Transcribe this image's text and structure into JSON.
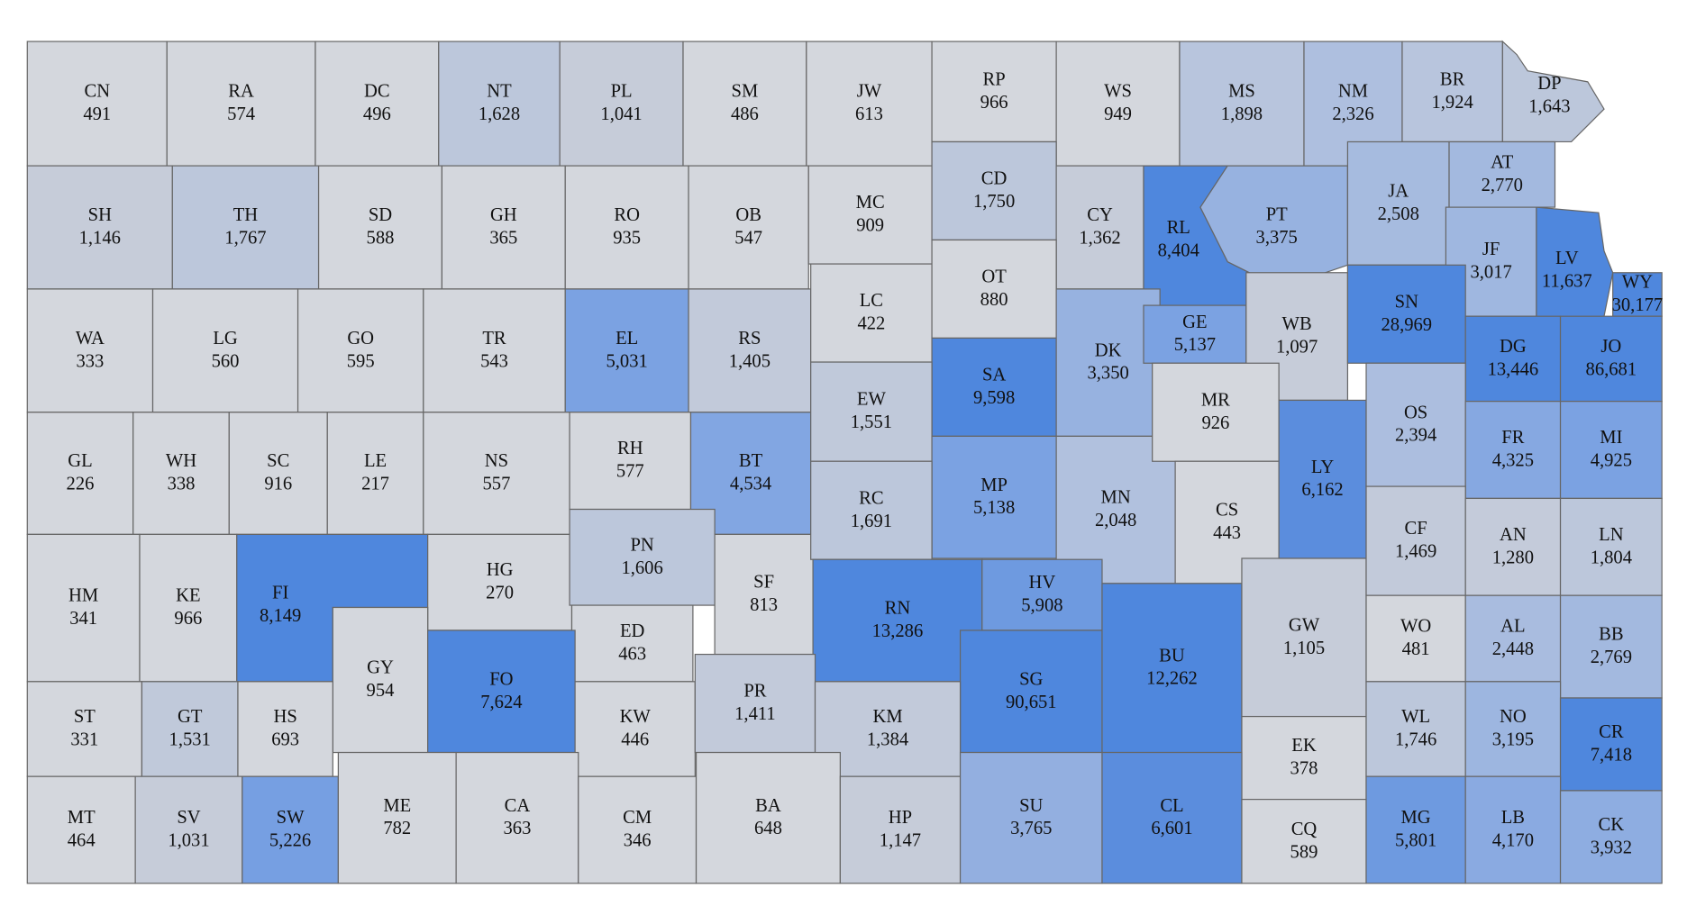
{
  "chart_data": {
    "type": "map",
    "categories": [
      "CN",
      "RA",
      "DC",
      "NT",
      "PL",
      "SM",
      "JW",
      "RP",
      "WS",
      "MS",
      "NM",
      "BR",
      "DP",
      "SH",
      "TH",
      "SD",
      "GH",
      "RO",
      "OB",
      "MC",
      "CD",
      "CY",
      "RL",
      "PT",
      "JA",
      "AT",
      "JF",
      "LV",
      "WY",
      "WA",
      "LG",
      "GO",
      "TR",
      "EL",
      "RS",
      "LC",
      "OT",
      "SA",
      "DK",
      "GE",
      "WB",
      "SN",
      "DG",
      "JO",
      "GL",
      "WH",
      "SC",
      "LE",
      "NS",
      "RH",
      "BT",
      "EW",
      "MP",
      "MN",
      "MR",
      "CS",
      "LY",
      "OS",
      "FR",
      "MI",
      "HM",
      "KE",
      "FI",
      "HG",
      "PN",
      "SF",
      "RC",
      "GY",
      "ED",
      "RN",
      "HV",
      "SG",
      "BU",
      "GW",
      "CF",
      "AN",
      "LN",
      "WO",
      "AL",
      "BB",
      "FO",
      "ST",
      "GT",
      "HS",
      "KW",
      "PR",
      "KM",
      "EK",
      "WL",
      "NO",
      "CR",
      "MT",
      "SV",
      "SW",
      "ME",
      "CA",
      "CM",
      "BA",
      "HP",
      "SU",
      "CL",
      "CQ",
      "MG",
      "LB",
      "CK"
    ],
    "values": [
      491,
      574,
      496,
      1628,
      1041,
      486,
      613,
      966,
      949,
      1898,
      2326,
      1924,
      1643,
      1146,
      1767,
      588,
      365,
      935,
      547,
      909,
      1750,
      1362,
      8404,
      3375,
      2508,
      2770,
      3017,
      11637,
      30177,
      333,
      560,
      595,
      543,
      5031,
      1405,
      422,
      880,
      9598,
      3350,
      5137,
      1097,
      28969,
      13446,
      86681,
      226,
      338,
      916,
      217,
      557,
      577,
      4534,
      1551,
      5138,
      2048,
      926,
      443,
      6162,
      2394,
      4325,
      4925,
      341,
      966,
      8149,
      270,
      1606,
      813,
      1691,
      954,
      463,
      13286,
      5908,
      90651,
      12262,
      1105,
      1469,
      1280,
      1804,
      481,
      2448,
      2769,
      7624,
      331,
      1531,
      693,
      446,
      1411,
      1384,
      378,
      1746,
      3195,
      7418,
      464,
      1031,
      5226,
      782,
      363,
      346,
      648,
      1147,
      3765,
      6601,
      589,
      5801,
      4170,
      3932
    ],
    "value_labels": [
      "491",
      "574",
      "496",
      "1,628",
      "1,041",
      "486",
      "613",
      "966",
      "949",
      "1,898",
      "2,326",
      "1,924",
      "1,643",
      "1,146",
      "1,767",
      "588",
      "365",
      "935",
      "547",
      "909",
      "1,750",
      "1,362",
      "8,404",
      "3,375",
      "2,508",
      "2,770",
      "3,017",
      "11,637",
      "30,177",
      "333",
      "560",
      "595",
      "543",
      "5,031",
      "1,405",
      "422",
      "880",
      "9,598",
      "3,350",
      "5,137",
      "1,097",
      "28,969",
      "13,446",
      "86,681",
      "226",
      "338",
      "916",
      "217",
      "557",
      "577",
      "4,534",
      "1,551",
      "5,138",
      "2,048",
      "926",
      "443",
      "6,162",
      "2,394",
      "4,325",
      "4,925",
      "341",
      "966",
      "8,149",
      "270",
      "1,606",
      "813",
      "1,691",
      "954",
      "463",
      "13,286",
      "5,908",
      "90,651",
      "12,262",
      "1,105",
      "1,469",
      "1,280",
      "1,804",
      "481",
      "2,448",
      "2,769",
      "7,624",
      "331",
      "1,531",
      "693",
      "446",
      "1,411",
      "1,384",
      "378",
      "1,746",
      "3,195",
      "7,418",
      "464",
      "1,031",
      "5,226",
      "782",
      "363",
      "346",
      "648",
      "1,147",
      "3,765",
      "6,601",
      "589",
      "5,801",
      "4,170",
      "3,932"
    ],
    "colors": [
      "#d4d7dd",
      "#d4d7dd",
      "#d4d7dd",
      "#bcc7db",
      "#c6ccd9",
      "#d4d7dd",
      "#d4d7dd",
      "#d4d7dd",
      "#d4d7dd",
      "#b8c5dd",
      "#aebfdf",
      "#b8c5dd",
      "#bcc7db",
      "#c6ccd9",
      "#bcc7db",
      "#d4d7dd",
      "#d4d7dd",
      "#d4d7dd",
      "#d4d7dd",
      "#d4d7dd",
      "#bcc7db",
      "#c6ccd9",
      "#4f87dd",
      "#97b2e0",
      "#a6bbdf",
      "#a3b9df",
      "#9fb7e0",
      "#4f87dd",
      "#4f87dd",
      "#d4d7dd",
      "#d4d7dd",
      "#d4d7dd",
      "#d4d7dd",
      "#7ba2e2",
      "#c2cada",
      "#d4d7dd",
      "#d4d7dd",
      "#4f87dd",
      "#97b2e0",
      "#7ba2e2",
      "#c6ccd9",
      "#4f87dd",
      "#4f87dd",
      "#4f87dd",
      "#d4d7dd",
      "#d4d7dd",
      "#d4d7dd",
      "#d4d7dd",
      "#d4d7dd",
      "#d4d7dd",
      "#82a6e2",
      "#c0c9da",
      "#7ba2e2",
      "#b1c1de",
      "#d4d7dd",
      "#d4d7dd",
      "#5b8ddd",
      "#acbedf",
      "#86a8e1",
      "#7ba2e2",
      "#d4d7dd",
      "#d4d7dd",
      "#4f87dd",
      "#d4d7dd",
      "#bcc7db",
      "#d4d7dd",
      "#bcc7db",
      "#d4d7dd",
      "#d4d7dd",
      "#4f87dd",
      "#6e9ae0",
      "#4f87dd",
      "#4f87dd",
      "#c6ccd9",
      "#c2cada",
      "#c4cbda",
      "#bcc7db",
      "#d4d7dd",
      "#a9bcdf",
      "#a3b9df",
      "#4f87dd",
      "#d4d7dd",
      "#c0c9da",
      "#d4d7dd",
      "#d4d7dd",
      "#c2cada",
      "#c2cada",
      "#d4d7dd",
      "#bcc7db",
      "#9db6e0",
      "#4f87dd",
      "#d4d7dd",
      "#c6ccd9",
      "#769fe2",
      "#d4d7dd",
      "#d4d7dd",
      "#d4d7dd",
      "#d4d7dd",
      "#c6ccd9",
      "#93afe0",
      "#5b8ddd",
      "#d4d7dd",
      "#6e9ae0",
      "#8aaae1",
      "#8eade1"
    ]
  }
}
